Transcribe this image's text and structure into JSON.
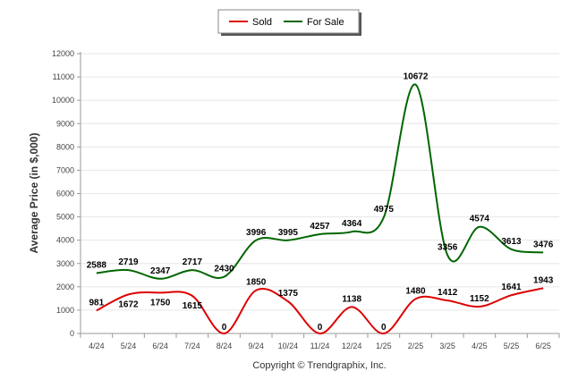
{
  "chart_data": {
    "type": "line",
    "title": "",
    "xlabel": "",
    "ylabel": "Average Price (in $,000)",
    "categories": [
      "4/24",
      "5/24",
      "6/24",
      "7/24",
      "8/24",
      "9/24",
      "10/24",
      "11/24",
      "12/24",
      "1/25",
      "2/25",
      "3/25",
      "4/25",
      "5/25",
      "6/25"
    ],
    "ylim": [
      0,
      12000
    ],
    "yticks": [
      0,
      1000,
      2000,
      3000,
      4000,
      5000,
      6000,
      7000,
      8000,
      9000,
      10000,
      11000,
      12000
    ],
    "grid": true,
    "legend_position": "top-center",
    "series": [
      {
        "name": "Sold",
        "color": "#dd0000",
        "values": [
          981,
          1672,
          1750,
          1615,
          0,
          1850,
          1375,
          0,
          1138,
          0,
          1480,
          1412,
          1152,
          1641,
          1943
        ]
      },
      {
        "name": "For Sale",
        "color": "#006600",
        "values": [
          2588,
          2719,
          2347,
          2717,
          2430,
          3996,
          3995,
          4257,
          4364,
          4975,
          10672,
          3356,
          4574,
          3613,
          3476
        ]
      }
    ]
  },
  "footer": {
    "credit": "Copyright © Trendgraphix, Inc."
  }
}
